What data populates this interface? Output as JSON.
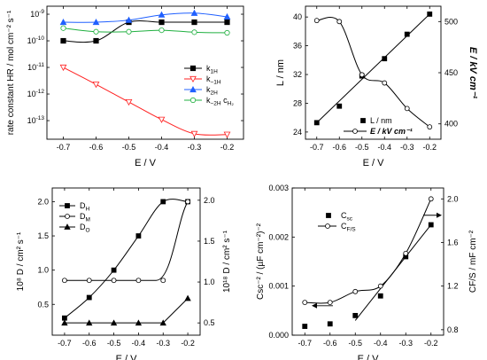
{
  "chart_data": [
    {
      "type": "line",
      "yscale": "log",
      "xlabel": "E / V",
      "ylabel": "rate constant HR / mol cm⁻² s⁻¹",
      "xlim": [
        -0.75,
        -0.15
      ],
      "ylim": [
        2e-14,
        2e-09
      ],
      "xticks": [
        "-0.7",
        "-0.6",
        "-0.5",
        "-0.4",
        "-0.3",
        "-0.2"
      ],
      "yticks": [
        {
          "v": 1e-09,
          "b": "10",
          "e": "-9"
        },
        {
          "v": 1e-10,
          "b": "10",
          "e": "-10"
        },
        {
          "v": 1e-11,
          "b": "10",
          "e": "-11"
        },
        {
          "v": 1e-12,
          "b": "10",
          "e": "-12"
        },
        {
          "v": 1e-13,
          "b": "10",
          "e": "-13"
        }
      ],
      "legend_position": "right",
      "series": [
        {
          "name": "k1H",
          "label": "k",
          "sub": "1H",
          "color": "#000000",
          "marker": "square",
          "filled": true,
          "x": [
            -0.7,
            -0.6,
            -0.5,
            -0.4,
            -0.3,
            -0.2
          ],
          "y": [
            1e-10,
            1e-10,
            5e-10,
            5e-10,
            5e-10,
            5e-10
          ]
        },
        {
          "name": "k−1H",
          "label": "k",
          "sub": "−1H",
          "color": "#ff2020",
          "marker": "triangle-down",
          "filled": false,
          "x": [
            -0.7,
            -0.6,
            -0.5,
            -0.4,
            -0.3,
            -0.2
          ],
          "y": [
            1e-11,
            2.3e-12,
            5e-13,
            1.1e-13,
            3.2e-14,
            3e-14
          ]
        },
        {
          "name": "k2H",
          "label": "k",
          "sub": "2H",
          "color": "#2060ff",
          "marker": "triangle-up",
          "filled": true,
          "x": [
            -0.7,
            -0.6,
            -0.5,
            -0.4,
            -0.3,
            -0.2
          ],
          "y": [
            5e-10,
            5e-10,
            6e-10,
            9.5e-10,
            1.1e-09,
            8e-10
          ]
        },
        {
          "name": "k−2H cH2",
          "label": "k",
          "sub": "−2H",
          "extra": " c",
          "extra_sub": "H₂",
          "color": "#20b040",
          "marker": "circle",
          "filled": false,
          "x": [
            -0.7,
            -0.6,
            -0.5,
            -0.4,
            -0.3,
            -0.2
          ],
          "y": [
            3e-10,
            2.2e-10,
            2.2e-10,
            2.5e-10,
            2.1e-10,
            2e-10
          ]
        }
      ]
    },
    {
      "type": "line",
      "xlabel": "E / V",
      "ylabel": "L / nm",
      "y2label": "E / kV cm⁻¹",
      "xlim": [
        -0.75,
        -0.15
      ],
      "ylim": [
        23,
        41.5
      ],
      "y2lim": [
        385,
        515
      ],
      "xticks": [
        "-0.7",
        "-0.6",
        "-0.5",
        "-0.4",
        "-0.3",
        "-0.2"
      ],
      "yticks": [
        "24",
        "28",
        "32",
        "36",
        "40"
      ],
      "y2ticks": [
        "400",
        "450",
        "500"
      ],
      "legend_position": "bottom-right",
      "series": [
        {
          "name": "L / nm",
          "axis": "left",
          "marker": "square",
          "filled": true,
          "line": "linear",
          "x": [
            -0.7,
            -0.6,
            -0.5,
            -0.4,
            -0.3,
            -0.2
          ],
          "y": [
            25.3,
            27.6,
            31.8,
            34.2,
            37.6,
            40.4
          ]
        },
        {
          "name": "E / kV cm⁻¹",
          "axis": "right",
          "marker": "circle",
          "filled": false,
          "line": "smooth",
          "x": [
            -0.7,
            -0.6,
            -0.5,
            -0.4,
            -0.3,
            -0.2
          ],
          "y": [
            501,
            500,
            448,
            440,
            415,
            397
          ]
        }
      ]
    },
    {
      "type": "line",
      "xlabel": "E / V",
      "ylabel": "10⁸ D / cm² s⁻¹",
      "y2label": "10¹⁸ D / cm² s⁻¹",
      "xlim": [
        -0.75,
        -0.15
      ],
      "ylim": [
        0.05,
        2.2
      ],
      "y2lim": [
        0.35,
        2.15
      ],
      "xticks": [
        "-0.7",
        "-0.6",
        "-0.5",
        "-0.4",
        "-0.3",
        "-0.2"
      ],
      "yticks": [
        "0.5",
        "1.0",
        "1.5",
        "2.0"
      ],
      "y2ticks": [
        "0.5",
        "1.0",
        "1.5",
        "2.0"
      ],
      "legend_position": "top-left",
      "series": [
        {
          "name": "DH",
          "label": "D",
          "sub": "H",
          "axis": "left",
          "marker": "square",
          "filled": true,
          "x": [
            -0.7,
            -0.6,
            -0.5,
            -0.4,
            -0.3,
            -0.2
          ],
          "y": [
            0.3,
            0.6,
            1.0,
            1.5,
            2.0,
            2.0
          ]
        },
        {
          "name": "DM",
          "label": "D",
          "sub": "M",
          "axis": "left",
          "marker": "circle",
          "filled": false,
          "x": [
            -0.7,
            -0.6,
            -0.5,
            -0.4,
            -0.3,
            -0.2
          ],
          "y": [
            0.85,
            0.85,
            0.85,
            0.85,
            0.85,
            2.0
          ]
        },
        {
          "name": "DO",
          "label": "D",
          "sub": "O",
          "axis": "right",
          "marker": "triangle-up",
          "filled": true,
          "x": [
            -0.7,
            -0.6,
            -0.5,
            -0.4,
            -0.3,
            -0.2
          ],
          "y": [
            0.5,
            0.5,
            0.5,
            0.5,
            0.5,
            0.8
          ]
        }
      ]
    },
    {
      "type": "line",
      "xlabel": "E / V",
      "ylabel": "Csc⁻² / (µF cm⁻²)⁻²",
      "y2label": "CF/S / mF cm⁻²",
      "xlim": [
        -0.75,
        -0.15
      ],
      "ylim": [
        0,
        0.003
      ],
      "y2lim": [
        0.75,
        2.1
      ],
      "xticks": [
        "-0.7",
        "-0.6",
        "-0.5",
        "-0.4",
        "-0.3",
        "-0.2"
      ],
      "yticks": [
        "0.000",
        "0.001",
        "0.002",
        "0.003"
      ],
      "y2ticks": [
        "0.8",
        "1.2",
        "1.6",
        "2.0"
      ],
      "legend_position": "top-left",
      "series": [
        {
          "name": "Csc",
          "label": "C",
          "sub": "sc",
          "axis": "left",
          "marker": "square",
          "filled": true,
          "line": "fit",
          "x": [
            -0.7,
            -0.6,
            -0.5,
            -0.4,
            -0.3,
            -0.2
          ],
          "y": [
            0.00018,
            0.00023,
            0.0004,
            0.0008,
            0.0016,
            0.00225
          ],
          "fit": [
            [
              -0.5,
              0.0003
            ],
            [
              -0.2,
              0.00225
            ]
          ]
        },
        {
          "name": "CF/S",
          "label": "C",
          "sub": "F/S",
          "axis": "right",
          "marker": "circle",
          "filled": false,
          "line": "smooth",
          "x": [
            -0.7,
            -0.6,
            -0.5,
            -0.4,
            -0.3,
            -0.2
          ],
          "y": [
            1.05,
            1.05,
            1.15,
            1.2,
            1.5,
            2.0
          ]
        }
      ]
    }
  ]
}
